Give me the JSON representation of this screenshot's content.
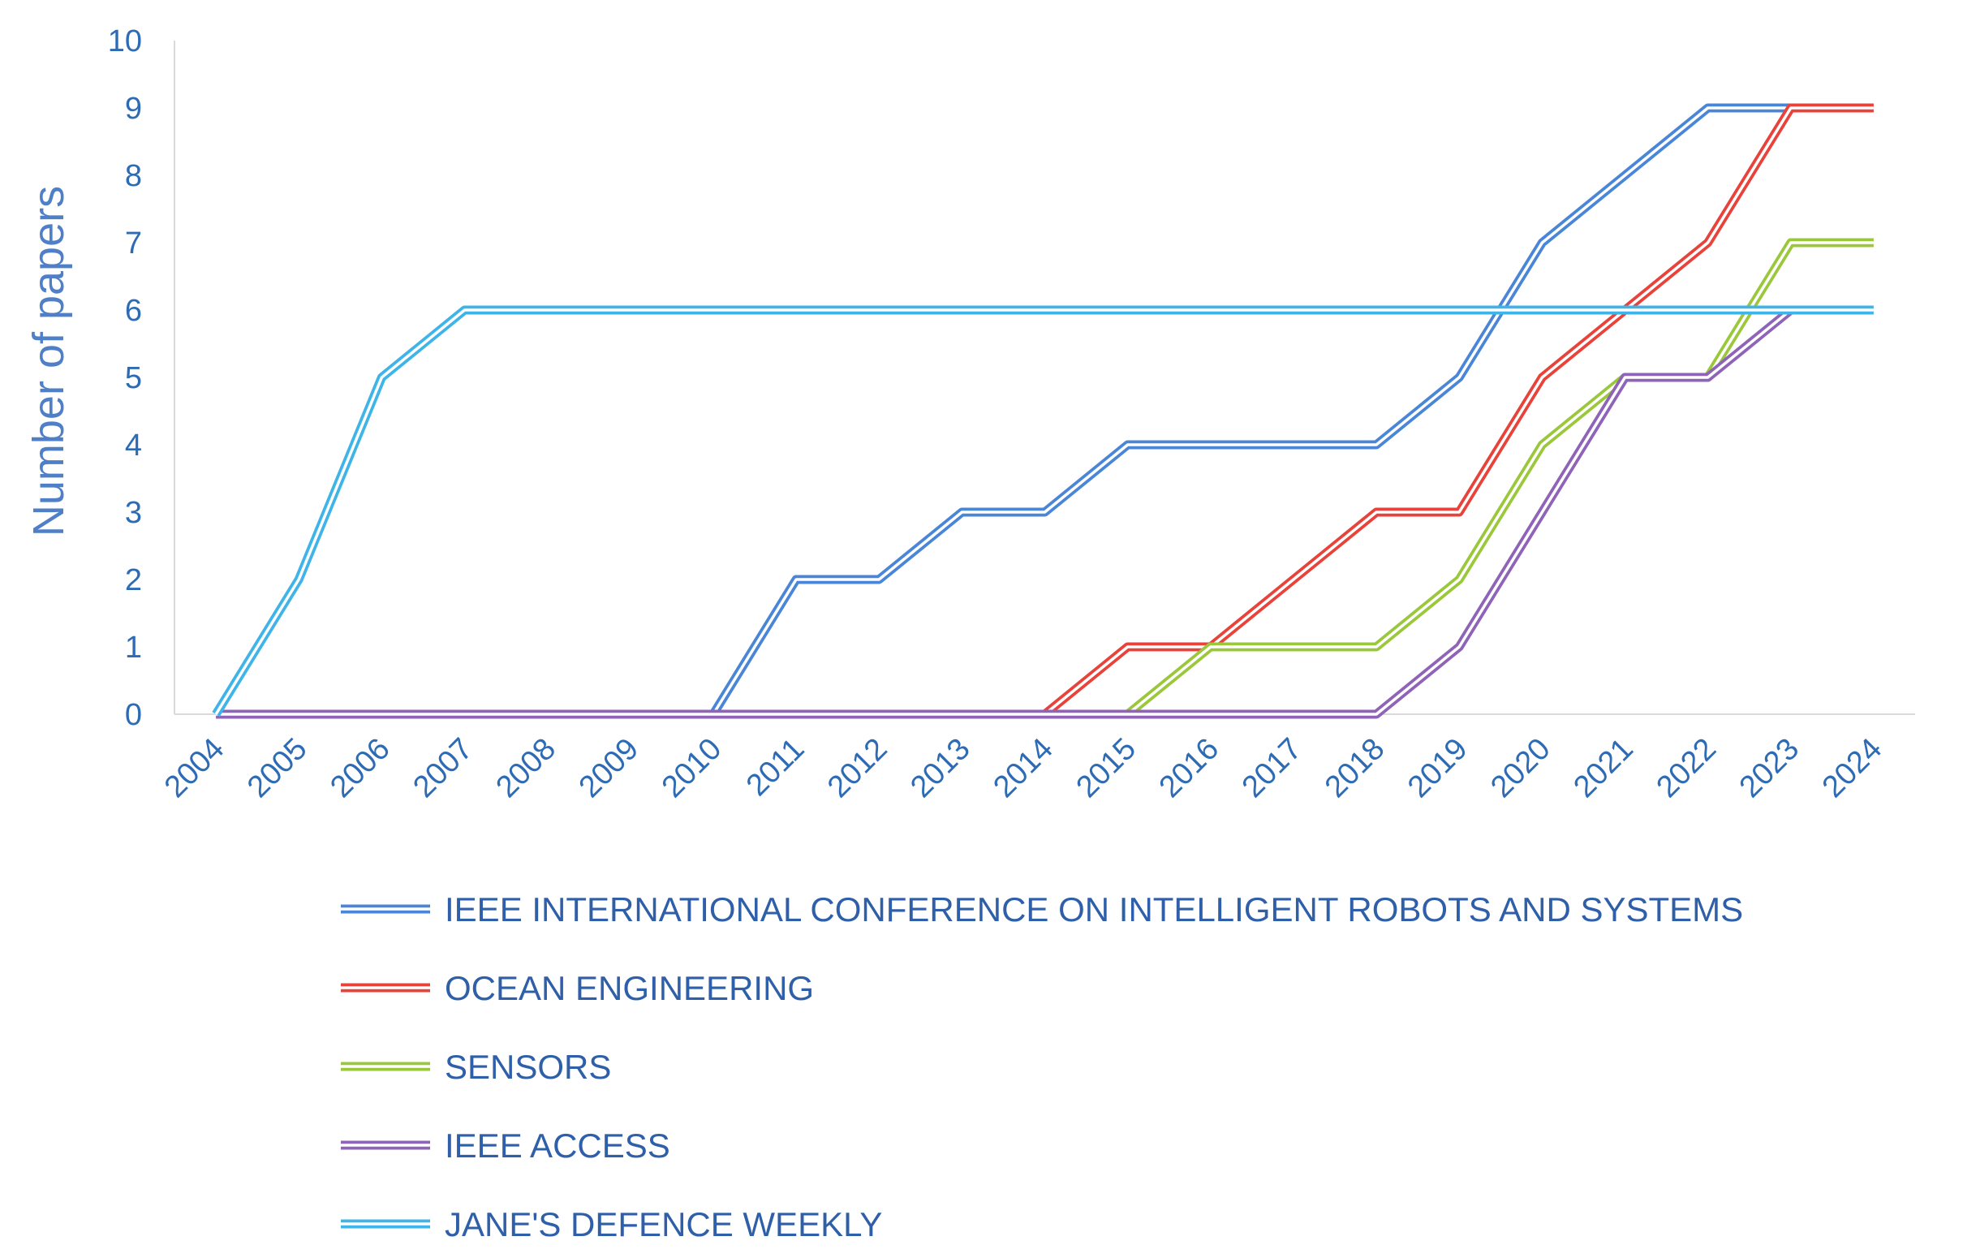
{
  "chart_data": {
    "type": "line",
    "title": "",
    "xlabel": "",
    "ylabel": "Number of papers",
    "ylim": [
      0,
      10
    ],
    "yticks": [
      0,
      1,
      2,
      3,
      4,
      5,
      6,
      7,
      8,
      9,
      10
    ],
    "grid": false,
    "legend_position": "bottom",
    "categories": [
      "2004",
      "2005",
      "2006",
      "2007",
      "2008",
      "2009",
      "2010",
      "2011",
      "2012",
      "2013",
      "2014",
      "2015",
      "2016",
      "2017",
      "2018",
      "2019",
      "2020",
      "2021",
      "2022",
      "2023",
      "2024"
    ],
    "series": [
      {
        "name": "IEEE INTERNATIONAL CONFERENCE ON INTELLIGENT ROBOTS AND SYSTEMS",
        "color": "#4a86d8",
        "values": [
          null,
          null,
          null,
          null,
          null,
          null,
          0,
          2,
          2,
          3,
          3,
          4,
          4,
          4,
          4,
          5,
          7,
          8,
          9,
          9,
          null
        ]
      },
      {
        "name": "OCEAN ENGINEERING",
        "color": "#e8423a",
        "values": [
          null,
          null,
          null,
          null,
          null,
          null,
          null,
          null,
          null,
          null,
          0,
          1,
          1,
          2,
          3,
          3,
          5,
          6,
          7,
          9,
          9
        ]
      },
      {
        "name": "SENSORS",
        "color": "#9bc83b",
        "values": [
          null,
          null,
          null,
          null,
          null,
          null,
          null,
          null,
          null,
          null,
          null,
          0,
          1,
          1,
          1,
          2,
          4,
          5,
          5,
          7,
          7
        ]
      },
      {
        "name": "IEEE ACCESS",
        "color": "#8e63b8",
        "values": [
          0,
          0,
          0,
          0,
          0,
          0,
          0,
          0,
          0,
          0,
          0,
          0,
          0,
          0,
          0,
          1,
          3,
          5,
          5,
          6,
          null
        ]
      },
      {
        "name": "JANE'S DEFENCE WEEKLY",
        "color": "#3fb4e8",
        "values": [
          0,
          2,
          5,
          6,
          6,
          6,
          6,
          6,
          6,
          6,
          6,
          6,
          6,
          6,
          6,
          6,
          6,
          6,
          6,
          6,
          6
        ]
      }
    ]
  }
}
